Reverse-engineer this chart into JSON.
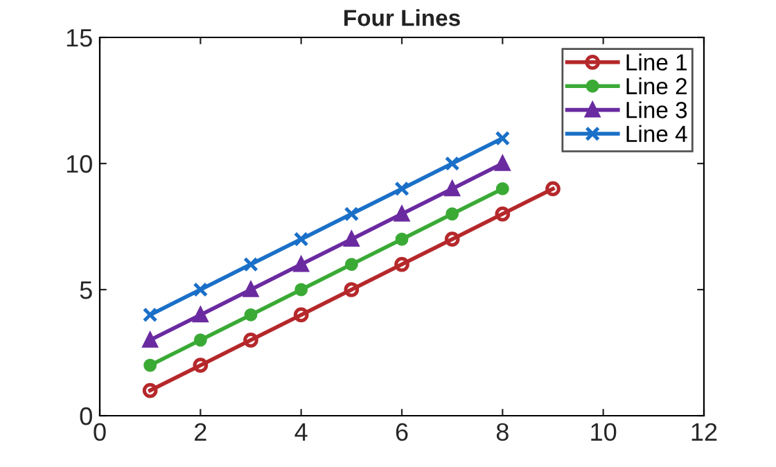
{
  "chart_data": {
    "type": "line",
    "title": "Four Lines",
    "x": [
      1,
      2,
      3,
      4,
      5,
      6,
      7,
      8,
      9
    ],
    "xlim": [
      0,
      12
    ],
    "xticks": [
      0,
      2,
      4,
      6,
      8,
      10,
      12
    ],
    "ylim": [
      0,
      15
    ],
    "yticks": [
      0,
      5,
      10,
      15
    ],
    "grid": false,
    "legend": "top right",
    "line_style": "solid",
    "series": [
      {
        "name": "Line 1",
        "color": "#b5282b",
        "marker": "circle",
        "values": [
          1,
          2,
          3,
          4,
          5,
          6,
          7,
          8,
          9
        ]
      },
      {
        "name": "Line 2",
        "color": "#3aaa35",
        "marker": "circle",
        "values": [
          2,
          3,
          4,
          5,
          6,
          7,
          8,
          9,
          null
        ]
      },
      {
        "name": "Line 3",
        "color": "#6a2aa0",
        "marker": "triangle",
        "values": [
          3,
          4,
          5,
          6,
          7,
          8,
          9,
          10,
          null
        ]
      },
      {
        "name": "Line 4",
        "color": "#1a70c8",
        "marker": "cross",
        "values": [
          4,
          5,
          6,
          7,
          8,
          9,
          10,
          11,
          null
        ]
      }
    ]
  }
}
